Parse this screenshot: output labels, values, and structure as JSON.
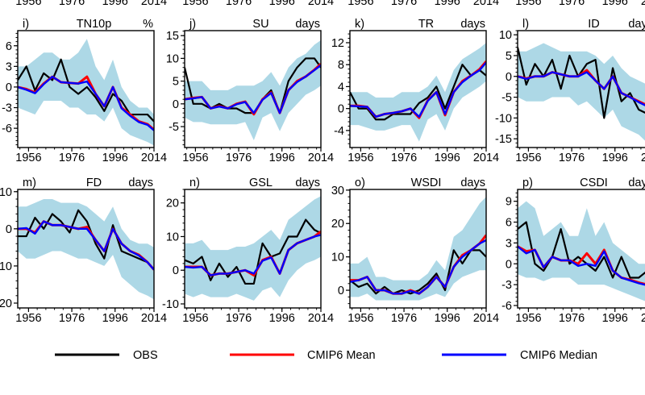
{
  "colors": {
    "obs": "#000000",
    "mean": "#ff0000",
    "median": "#0000ff",
    "spread": "#add8e6"
  },
  "top_row_tick_labels": [
    "1956",
    "1976",
    "1996",
    "2014"
  ],
  "legend": [
    {
      "label": "OBS",
      "color": "#000000"
    },
    {
      "label": "CMIP6 Mean",
      "color": "#ff0000"
    },
    {
      "label": "CMIP6 Median",
      "color": "#0000ff"
    }
  ],
  "chart_data": [
    {
      "type": "line",
      "panel": "i)",
      "title": "TN10p",
      "unit": "%",
      "xlim": [
        1951,
        2014
      ],
      "ylim": [
        -8.8,
        8.2
      ],
      "xticks": [
        1956,
        1976,
        1996,
        2014
      ],
      "yticks": [
        6,
        3,
        0,
        -3,
        -6
      ],
      "x": [
        1951,
        1955,
        1959,
        1963,
        1967,
        1971,
        1975,
        1979,
        1983,
        1987,
        1991,
        1995,
        1999,
        2003,
        2007,
        2011,
        2014
      ],
      "series": [
        {
          "name": "OBS",
          "values": [
            1,
            3,
            -0.5,
            2,
            1,
            4,
            0,
            -1,
            0,
            -1.5,
            -3.5,
            -1,
            -2,
            -4,
            -4,
            -4,
            -5
          ]
        },
        {
          "name": "CMIP6 Mean",
          "values": [
            0,
            -0.3,
            -0.8,
            0.5,
            1.5,
            0.7,
            0.6,
            0.5,
            1.5,
            -1,
            -2.8,
            0,
            -3,
            -4,
            -5,
            -5.4,
            -6.2
          ]
        },
        {
          "name": "CMIP6 Median",
          "values": [
            0,
            -0.4,
            -0.9,
            0.4,
            1.5,
            0.7,
            0.6,
            0.5,
            0.8,
            -1,
            -2.8,
            0,
            -3.1,
            -4.2,
            -5.1,
            -5.5,
            -6.3
          ]
        }
      ],
      "spread_low": [
        -3,
        -3.5,
        -4,
        -2,
        -2,
        -2,
        -3,
        -3,
        -4,
        -4,
        -5,
        -3,
        -6,
        -7,
        -7.5,
        -8,
        -8.5
      ],
      "spread_high": [
        3,
        3,
        4,
        5,
        5,
        4,
        4,
        5,
        7,
        3,
        1,
        4,
        0,
        -2,
        -3,
        -3,
        -4
      ]
    },
    {
      "type": "line",
      "panel": "j)",
      "title": "SU",
      "unit": "days",
      "xlim": [
        1951,
        2014
      ],
      "ylim": [
        -9.6,
        16.1
      ],
      "xticks": [
        1956,
        1976,
        1996,
        2014
      ],
      "yticks": [
        15,
        10,
        5,
        0,
        -5
      ],
      "x": [
        1951,
        1955,
        1959,
        1963,
        1967,
        1971,
        1975,
        1979,
        1983,
        1987,
        1991,
        1995,
        1999,
        2003,
        2007,
        2011,
        2014
      ],
      "series": [
        {
          "name": "OBS",
          "values": [
            8,
            0,
            0,
            -1,
            0,
            -1,
            -1,
            -2,
            -2,
            1,
            3,
            -2,
            5,
            8,
            10,
            10,
            8
          ]
        },
        {
          "name": "CMIP6 Mean",
          "values": [
            1,
            1.3,
            1.5,
            -1,
            -0.5,
            -1,
            0,
            0.5,
            -2.3,
            1,
            2.5,
            -2,
            3,
            5,
            6,
            7.5,
            8.8
          ]
        },
        {
          "name": "CMIP6 Median",
          "values": [
            1,
            1.2,
            1.5,
            -1,
            -0.6,
            -1,
            -0.1,
            0.4,
            -2,
            0.9,
            2.4,
            -2,
            3,
            4.8,
            6,
            7.4,
            8.5
          ]
        }
      ],
      "spread_low": [
        -3,
        -4,
        -4,
        -4.5,
        -4.5,
        -4.5,
        -4.5,
        -4,
        -8,
        -3,
        -2,
        -6,
        -2,
        0,
        2,
        3,
        4
      ],
      "spread_high": [
        5,
        5,
        5,
        3,
        3,
        3,
        4,
        4,
        4,
        5,
        7,
        4,
        8,
        10,
        11,
        13,
        14
      ]
    },
    {
      "type": "line",
      "panel": "k)",
      "title": "TR",
      "unit": "days",
      "xlim": [
        1951,
        2014
      ],
      "ylim": [
        -7.1,
        14.2
      ],
      "xticks": [
        1956,
        1976,
        1996,
        2014
      ],
      "yticks": [
        12,
        8,
        4,
        0,
        -4
      ],
      "x": [
        1951,
        1955,
        1959,
        1963,
        1967,
        1971,
        1975,
        1979,
        1983,
        1987,
        1991,
        1995,
        1999,
        2003,
        2007,
        2011,
        2014
      ],
      "series": [
        {
          "name": "OBS",
          "values": [
            3,
            0,
            0,
            -2,
            -2,
            -1,
            -1,
            -1,
            1,
            2,
            4,
            0,
            4,
            8,
            6,
            7,
            6
          ]
        },
        {
          "name": "CMIP6 Mean",
          "values": [
            0.5,
            0.5,
            0.3,
            -1.5,
            -1,
            -0.8,
            -0.5,
            0,
            -1.7,
            1.5,
            3,
            -1.2,
            3,
            5,
            6,
            7.2,
            8.6
          ]
        },
        {
          "name": "CMIP6 Median",
          "values": [
            0.5,
            0.4,
            0.3,
            -1.5,
            -1,
            -0.8,
            -0.5,
            0,
            -1.5,
            1.4,
            3,
            -1,
            3,
            4.8,
            6,
            7,
            8.4
          ]
        }
      ],
      "spread_low": [
        -3,
        -3,
        -3.5,
        -4,
        -4,
        -3.5,
        -3,
        -3,
        -6,
        -2,
        -1,
        -4,
        0,
        2,
        3,
        4,
        5
      ],
      "spread_high": [
        3,
        3,
        3,
        2,
        2,
        2,
        3,
        3,
        3,
        4,
        6,
        3,
        7,
        9,
        10,
        11,
        12
      ]
    },
    {
      "type": "line",
      "panel": "l)",
      "title": "ID",
      "unit": "days",
      "xlim": [
        1951,
        2014
      ],
      "ylim": [
        -17.1,
        11
      ],
      "xticks": [
        1956,
        1976,
        1996,
        2014
      ],
      "yticks": [
        10,
        5,
        0,
        -5,
        -10,
        -15
      ],
      "x": [
        1951,
        1955,
        1959,
        1963,
        1967,
        1971,
        1975,
        1979,
        1983,
        1987,
        1991,
        1995,
        1999,
        2003,
        2007,
        2011,
        2014
      ],
      "series": [
        {
          "name": "OBS",
          "values": [
            7,
            -2,
            3,
            0,
            4,
            -3,
            5,
            0,
            3,
            4,
            -10,
            2,
            -6,
            -4,
            -8,
            -9,
            -8
          ]
        },
        {
          "name": "CMIP6 Mean",
          "values": [
            0,
            -0.5,
            0,
            0,
            1,
            0.5,
            0,
            0,
            1.5,
            -1,
            -3,
            0,
            -4,
            -5,
            -6,
            -7,
            -8
          ]
        },
        {
          "name": "CMIP6 Median",
          "values": [
            0,
            -0.6,
            0,
            0,
            1,
            0.5,
            0,
            0,
            1,
            -1,
            -3,
            0,
            -4,
            -5,
            -6.2,
            -7.2,
            -8
          ]
        }
      ],
      "spread_low": [
        -5,
        -6,
        -6,
        -6,
        -5,
        -5,
        -5,
        -7,
        -6,
        -8,
        -10,
        -8,
        -12,
        -13,
        -14,
        -16,
        -17
      ],
      "spread_high": [
        6,
        6,
        7,
        8,
        7,
        6,
        6,
        6,
        6,
        5,
        3,
        5,
        2,
        0,
        -1,
        -2,
        -2
      ]
    },
    {
      "type": "line",
      "panel": "m)",
      "title": "FD",
      "unit": "days",
      "xlim": [
        1951,
        2014
      ],
      "ylim": [
        -21.3,
        10.6
      ],
      "xticks": [
        1956,
        1976,
        1996,
        2014
      ],
      "yticks": [
        10,
        0,
        -10,
        -20
      ],
      "x": [
        1951,
        1955,
        1959,
        1963,
        1967,
        1971,
        1975,
        1979,
        1983,
        1987,
        1991,
        1995,
        1999,
        2003,
        2007,
        2011,
        2014
      ],
      "series": [
        {
          "name": "OBS",
          "values": [
            -2,
            -2,
            3,
            0,
            4,
            2,
            -1,
            5,
            2,
            -4,
            -8,
            1,
            -6,
            -7,
            -8,
            -9,
            -11
          ]
        },
        {
          "name": "CMIP6 Mean",
          "values": [
            0,
            0,
            -1,
            2,
            1,
            1,
            0.5,
            0,
            0.5,
            -3,
            -6,
            0,
            -4,
            -6,
            -7,
            -9,
            -11
          ]
        },
        {
          "name": "CMIP6 Median",
          "values": [
            0,
            0.2,
            -1.3,
            2,
            1,
            1,
            0.5,
            0,
            0,
            -3,
            -6,
            0,
            -4,
            -6,
            -7.2,
            -9,
            -11
          ]
        }
      ],
      "spread_low": [
        -6,
        -8,
        -8,
        -7,
        -6,
        -6,
        -7,
        -8,
        -8,
        -9,
        -10,
        -7,
        -13,
        -15,
        -17,
        -18,
        -19
      ],
      "spread_high": [
        6,
        6,
        7,
        8,
        8,
        7,
        7,
        7,
        6,
        4,
        2,
        6,
        0,
        -3,
        -4,
        -4,
        -5
      ]
    },
    {
      "type": "line",
      "panel": "n)",
      "title": "GSL",
      "unit": "days",
      "xlim": [
        1951,
        2014
      ],
      "ylim": [
        -11.2,
        24
      ],
      "xticks": [
        1956,
        1976,
        1996,
        2014
      ],
      "yticks": [
        20,
        10,
        0,
        -10
      ],
      "x": [
        1951,
        1955,
        1959,
        1963,
        1967,
        1971,
        1975,
        1979,
        1983,
        1987,
        1991,
        1995,
        1999,
        2003,
        2007,
        2011,
        2014
      ],
      "series": [
        {
          "name": "OBS",
          "values": [
            3,
            2,
            4,
            -3,
            2,
            -2,
            1,
            -4,
            -4,
            8,
            4,
            5,
            10,
            10,
            15,
            12,
            11
          ]
        },
        {
          "name": "CMIP6 Mean",
          "values": [
            1,
            1,
            1,
            -1.5,
            -1,
            -1,
            -0.5,
            0,
            -1.5,
            3,
            4,
            -1,
            6,
            8,
            9,
            10,
            11.5
          ]
        },
        {
          "name": "CMIP6 Median",
          "values": [
            1,
            0.8,
            1,
            -1.5,
            -1,
            -1,
            -0.5,
            0,
            -1,
            2.8,
            3.8,
            -1,
            6,
            8,
            9,
            10,
            10.5
          ]
        }
      ],
      "spread_low": [
        -7,
        -8,
        -7,
        -8,
        -8,
        -8,
        -7,
        -8,
        -9,
        -6,
        -5,
        -8,
        -3,
        0,
        2,
        3,
        4
      ],
      "spread_high": [
        8,
        8,
        9,
        6,
        6,
        6,
        7,
        7,
        8,
        10,
        12,
        9,
        15,
        17,
        19,
        21,
        22
      ]
    },
    {
      "type": "line",
      "panel": "o)",
      "title": "WSDI",
      "unit": "days",
      "xlim": [
        1951,
        2014
      ],
      "ylim": [
        -5.3,
        30.2
      ],
      "xticks": [
        1956,
        1976,
        1996,
        2014
      ],
      "yticks": [
        30,
        20,
        10,
        0
      ],
      "x": [
        1951,
        1955,
        1959,
        1963,
        1967,
        1971,
        1975,
        1979,
        1983,
        1987,
        1991,
        1995,
        1999,
        2003,
        2007,
        2011,
        2014
      ],
      "series": [
        {
          "name": "OBS",
          "values": [
            3,
            1,
            2,
            -1,
            1,
            -1,
            0,
            -1,
            0,
            2,
            5,
            0,
            12,
            8,
            12,
            12,
            10
          ]
        },
        {
          "name": "CMIP6 Mean",
          "values": [
            3,
            3,
            4,
            0,
            0,
            -1,
            -1,
            0,
            -1,
            1,
            4,
            1,
            7,
            10.5,
            12,
            14,
            16.5
          ]
        },
        {
          "name": "CMIP6 Median",
          "values": [
            2.5,
            3,
            4,
            0,
            0,
            -1,
            -1,
            -0.2,
            -1,
            1,
            4,
            1,
            7,
            10,
            12,
            14,
            15
          ]
        }
      ],
      "spread_low": [
        -2,
        -2,
        -1,
        -3,
        -3,
        -3,
        -3,
        -3,
        -3,
        -2,
        -1,
        -2,
        2,
        4,
        5,
        6,
        6
      ],
      "spread_high": [
        8,
        8,
        10,
        4,
        4,
        3,
        3,
        3,
        3,
        5,
        9,
        6,
        16,
        18,
        22,
        26,
        28
      ]
    },
    {
      "type": "line",
      "panel": "p)",
      "title": "CSDI",
      "unit": "days",
      "xlim": [
        1951,
        2014
      ],
      "ylim": [
        -6.35,
        10.7
      ],
      "xticks": [
        1956,
        1976,
        1996,
        2014
      ],
      "yticks": [
        9,
        6,
        3,
        0,
        -3,
        -6
      ],
      "x": [
        1951,
        1955,
        1959,
        1963,
        1967,
        1971,
        1975,
        1979,
        1983,
        1987,
        1991,
        1995,
        1999,
        2003,
        2007,
        2011,
        2014
      ],
      "series": [
        {
          "name": "OBS",
          "values": [
            5,
            6,
            0,
            -1,
            1,
            5,
            0,
            1,
            0,
            -1,
            1,
            -2,
            1,
            -2,
            -2,
            -1,
            -2
          ]
        },
        {
          "name": "CMIP6 Mean",
          "values": [
            2.5,
            1.8,
            2,
            -0.5,
            1,
            0.5,
            0.5,
            0,
            1.5,
            0,
            2,
            -1,
            -2,
            -2.3,
            -2.7,
            -3,
            -3.3
          ]
        },
        {
          "name": "CMIP6 Median",
          "values": [
            2.5,
            1.5,
            2,
            -0.5,
            1,
            0.5,
            0.5,
            -0.3,
            0,
            -0.3,
            1.8,
            -1,
            -2,
            -2.4,
            -2.8,
            -3.1,
            -3.4
          ]
        }
      ],
      "spread_low": [
        -1.5,
        -2,
        -2,
        -2.5,
        -2,
        -2,
        -2,
        -3,
        -3,
        -3,
        -3,
        -3.5,
        -4,
        -4.5,
        -5,
        -5.5,
        -6
      ],
      "spread_high": [
        8,
        9,
        8,
        4,
        5,
        6,
        4,
        4,
        8,
        4,
        6,
        3,
        2,
        1,
        0,
        0,
        0
      ]
    }
  ]
}
